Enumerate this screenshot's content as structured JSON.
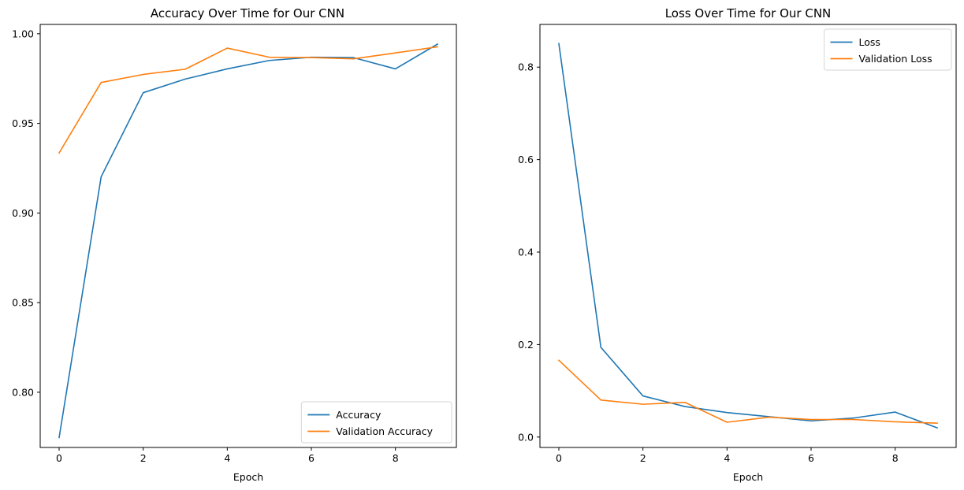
{
  "chart_data": [
    {
      "type": "line",
      "title": "Accuracy Over Time for Our CNN",
      "xlabel": "Epoch",
      "ylabel": "",
      "x": [
        0,
        1,
        2,
        3,
        4,
        5,
        6,
        7,
        8,
        9
      ],
      "xlim": [
        -0.45,
        9.45
      ],
      "ylim": [
        0.7692,
        1.0052
      ],
      "xticks": [
        0,
        2,
        4,
        6,
        8
      ],
      "yticks": [
        0.8,
        0.85,
        0.9,
        0.95,
        1.0
      ],
      "ytick_labels": [
        "0.80",
        "0.85",
        "0.90",
        "0.95",
        "1.00"
      ],
      "grid": false,
      "legend": "bottom-right",
      "series": [
        {
          "name": "Accuracy",
          "color": "#1f77b4",
          "values": [
            0.7747,
            0.9202,
            0.9671,
            0.9747,
            0.9804,
            0.9851,
            0.9869,
            0.9867,
            0.9804,
            0.9942
          ]
        },
        {
          "name": "Validation Accuracy",
          "color": "#ff7f0e",
          "values": [
            0.9335,
            0.9728,
            0.9773,
            0.9802,
            0.992,
            0.9869,
            0.9867,
            0.986,
            0.9893,
            0.9927
          ]
        }
      ]
    },
    {
      "type": "line",
      "title": "Loss Over Time for Our CNN",
      "xlabel": "Epoch",
      "ylabel": "",
      "x": [
        0,
        1,
        2,
        3,
        4,
        5,
        6,
        7,
        8,
        9
      ],
      "xlim": [
        -0.45,
        9.45
      ],
      "ylim": [
        -0.0225,
        0.8924
      ],
      "xticks": [
        0,
        2,
        4,
        6,
        8
      ],
      "yticks": [
        0.0,
        0.2,
        0.4,
        0.6,
        0.8
      ],
      "ytick_labels": [
        "0.0",
        "0.2",
        "0.4",
        "0.6",
        "0.8"
      ],
      "grid": false,
      "legend": "top-right",
      "series": [
        {
          "name": "Loss",
          "color": "#1f77b4",
          "values": [
            0.851,
            0.194,
            0.089,
            0.066,
            0.053,
            0.044,
            0.035,
            0.041,
            0.054,
            0.02
          ]
        },
        {
          "name": "Validation Loss",
          "color": "#ff7f0e",
          "values": [
            0.166,
            0.08,
            0.071,
            0.075,
            0.032,
            0.043,
            0.038,
            0.038,
            0.033,
            0.03
          ]
        }
      ]
    }
  ]
}
